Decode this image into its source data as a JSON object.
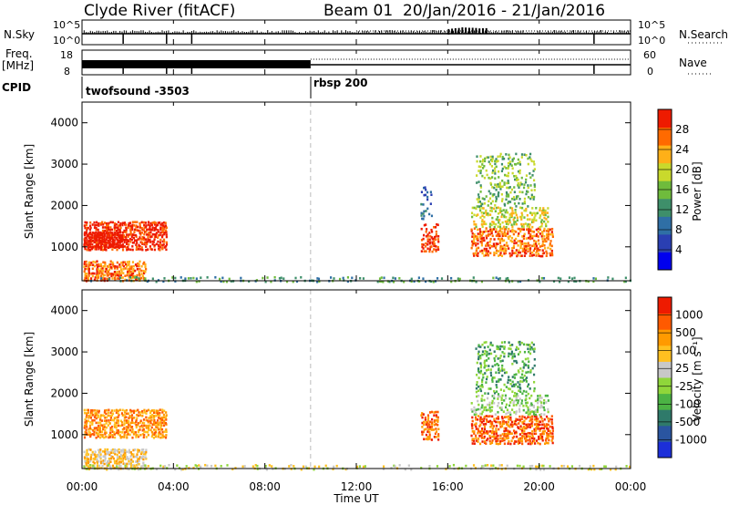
{
  "header": {
    "station": "Clyde River (fitACF)",
    "beam": "Beam 01",
    "dates": "20/Jan/2016 - 21/Jan/2016"
  },
  "aux": {
    "nsky_label": "N.Sky",
    "nsearch_label": "N.Search",
    "freq_label": "Freq.",
    "freq_unit": "[MHz]",
    "nave_label": "Nave",
    "cpid_label": "CPID",
    "nsky_ticks": [
      "10^5",
      "10^0"
    ],
    "freq_ticks": [
      "18",
      "8"
    ],
    "nave_ticks": [
      "60",
      "0"
    ],
    "cpid_segments": [
      {
        "label": "twofsound -3503",
        "start_h": 0
      },
      {
        "label": "rbsp 200",
        "start_h": 10
      }
    ]
  },
  "colors": {
    "power": [
      "#0000ee",
      "#2a3fb2",
      "#2f6fa5",
      "#3e8f6a",
      "#6fbb3c",
      "#c9d92c",
      "#ffb018",
      "#ff6a00",
      "#ee1b00"
    ],
    "velocity": [
      "#1c2fd9",
      "#2a55a0",
      "#2f7a6a",
      "#4bb344",
      "#8fd63a",
      "#c8c8c8",
      "#ffc020",
      "#ff9a00",
      "#ff5a00",
      "#ee1b00"
    ]
  },
  "chart_data": [
    {
      "type": "heatmap",
      "name": "power",
      "ylabel": "Slant Range [km]",
      "colorbar_label": "Power [dB]",
      "colorbar_ticks": [
        "28",
        "24",
        "20",
        "16",
        "12",
        "8",
        "4"
      ],
      "ylim": [
        180,
        4500
      ],
      "yticks": [
        1000,
        2000,
        3000,
        4000
      ],
      "xlim": [
        0,
        24
      ],
      "regions": [
        {
          "t0": 0.05,
          "t1": 3.7,
          "r0": 950,
          "r1": 1650,
          "level": 8,
          "density": 0.8
        },
        {
          "t0": 0.05,
          "t1": 1.8,
          "r0": 1000,
          "r1": 1400,
          "level": 9,
          "density": 0.9
        },
        {
          "t0": 0.05,
          "t1": 2.8,
          "r0": 200,
          "r1": 700,
          "level": 7,
          "density": 0.75
        },
        {
          "t0": 0.05,
          "t1": 24,
          "r0": 180,
          "r1": 320,
          "level": 3,
          "density": 0.35
        },
        {
          "t0": 14.8,
          "t1": 15.6,
          "r0": 900,
          "r1": 1600,
          "level": 8,
          "density": 0.6
        },
        {
          "t0": 14.8,
          "t1": 15.3,
          "r0": 1700,
          "r1": 2500,
          "level": 2,
          "density": 0.3
        },
        {
          "t0": 17.0,
          "t1": 20.6,
          "r0": 800,
          "r1": 1500,
          "level": 7,
          "density": 0.7
        },
        {
          "t0": 17.0,
          "t1": 20.4,
          "r0": 1500,
          "r1": 2000,
          "level": 5,
          "density": 0.45
        },
        {
          "t0": 17.2,
          "t1": 19.8,
          "r0": 2000,
          "r1": 3300,
          "level": 4,
          "density": 0.35
        }
      ]
    },
    {
      "type": "heatmap",
      "name": "velocity",
      "ylabel": "Slant Range [km]",
      "colorbar_label": "Velocity [m s⁻¹]",
      "colorbar_ticks": [
        "1000",
        "500",
        "100",
        "25",
        "-25",
        "-100",
        "-500",
        "-1000"
      ],
      "ylim": [
        180,
        4500
      ],
      "yticks": [
        1000,
        2000,
        3000,
        4000
      ],
      "xlim": [
        0,
        24
      ],
      "regions": [
        {
          "t0": 0.05,
          "t1": 3.7,
          "r0": 950,
          "r1": 1650,
          "level": 7,
          "density": 0.8
        },
        {
          "t0": 0.05,
          "t1": 2.8,
          "r0": 200,
          "r1": 700,
          "level": 6,
          "density": 0.75
        },
        {
          "t0": 0.05,
          "t1": 24,
          "r0": 180,
          "r1": 320,
          "level": 5,
          "density": 0.35
        },
        {
          "t0": 14.8,
          "t1": 15.6,
          "r0": 900,
          "r1": 1600,
          "level": 8,
          "density": 0.6
        },
        {
          "t0": 17.0,
          "t1": 20.6,
          "r0": 800,
          "r1": 1500,
          "level": 8,
          "density": 0.7
        },
        {
          "t0": 17.0,
          "t1": 20.4,
          "r0": 1500,
          "r1": 2000,
          "level": 4,
          "density": 0.45
        },
        {
          "t0": 17.2,
          "t1": 19.8,
          "r0": 2000,
          "r1": 3300,
          "level": 3,
          "density": 0.35
        }
      ]
    }
  ],
  "xaxis": {
    "label": "Time UT",
    "ticks": [
      "00:00",
      "04:00",
      "08:00",
      "12:00",
      "16:00",
      "20:00",
      "00:00"
    ],
    "tick_hours": [
      0,
      4,
      8,
      12,
      16,
      20,
      24
    ]
  }
}
